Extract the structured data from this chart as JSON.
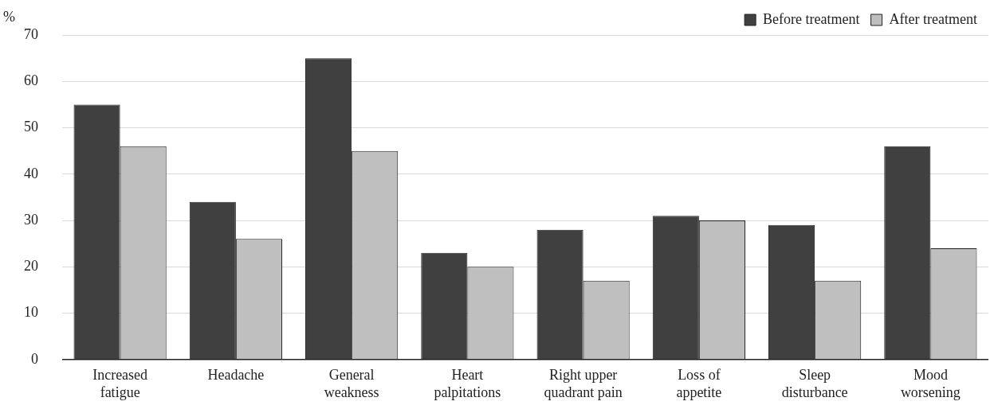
{
  "chart_data": {
    "type": "bar",
    "ylabel": "%",
    "categories": [
      "Increased\nfatigue",
      "Headache",
      "General\nweakness",
      "Heart\npalpitations",
      "Right upper\nquadrant pain",
      "Loss of\nappetite",
      "Sleep\ndisturbance",
      "Mood\nworsening"
    ],
    "series": [
      {
        "name": "Before treatment",
        "color": "#404040",
        "values": [
          55,
          34,
          65,
          23,
          28,
          31,
          29,
          46
        ]
      },
      {
        "name": "After treatment",
        "color": "#bfbfbf",
        "values": [
          46,
          26,
          45,
          20,
          17,
          30,
          17,
          24
        ]
      }
    ],
    "ylim": [
      0,
      70
    ],
    "yticks": [
      0,
      10,
      20,
      30,
      40,
      50,
      60,
      70
    ],
    "grid": "y",
    "legend": "top right"
  }
}
